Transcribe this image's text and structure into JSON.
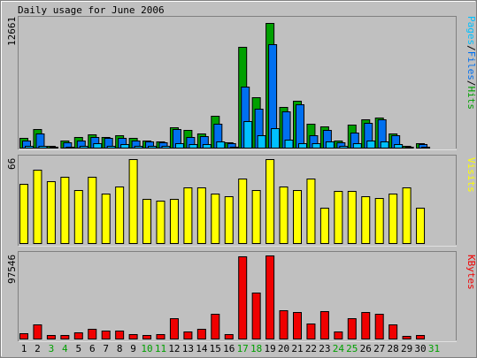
{
  "chart_data": {
    "type": "bar",
    "title": "Daily usage for June 2006",
    "categories": [
      "1",
      "2",
      "3",
      "4",
      "5",
      "6",
      "7",
      "8",
      "9",
      "10",
      "11",
      "12",
      "13",
      "14",
      "15",
      "16",
      "17",
      "18",
      "19",
      "20",
      "21",
      "22",
      "23",
      "24",
      "25",
      "26",
      "27",
      "28",
      "29",
      "30",
      "31"
    ],
    "weekend_days": [
      "3",
      "4",
      "10",
      "11",
      "17",
      "18",
      "24",
      "25",
      "31"
    ],
    "colors": {
      "hits": "#00a000",
      "files": "#0070f0",
      "pages": "#00c0ff",
      "visits": "#ffff00",
      "kbytes": "#f00000",
      "weekday_label": "#000000",
      "weekend_label": "#00a000",
      "background": "#c0c0c0"
    },
    "panels": {
      "hits_files_pages": {
        "ymax_label": "12661",
        "ylim": [
          0,
          12661
        ],
        "legend": [
          {
            "text": "Pages",
            "color": "#00c0ff"
          },
          {
            "text": "/",
            "color": "#000000"
          },
          {
            "text": "Files",
            "color": "#0070f0"
          },
          {
            "text": "/",
            "color": "#000000"
          },
          {
            "text": "Hits",
            "color": "#00a000"
          }
        ],
        "series": [
          {
            "name": "Hits",
            "values": [
              1000,
              1900,
              300,
              800,
              1100,
              1400,
              1100,
              1300,
              1000,
              800,
              700,
              2100,
              1800,
              1500,
              3200,
              600,
              10000,
              5000,
              12300,
              4100,
              4700,
              2400,
              2200,
              800,
              2300,
              2900,
              3000,
              1500,
              300,
              500,
              0
            ]
          },
          {
            "name": "Files",
            "values": [
              800,
              1500,
              200,
              600,
              800,
              1100,
              1000,
              1000,
              800,
              700,
              600,
              1900,
              1100,
              1200,
              2400,
              500,
              6100,
              3900,
              10200,
              3600,
              4300,
              1300,
              1800,
              600,
              1600,
              2500,
              2900,
              1300,
              200,
              400,
              0
            ]
          },
          {
            "name": "Pages",
            "values": [
              300,
              300,
              100,
              200,
              300,
              500,
              300,
              400,
              300,
              300,
              300,
              500,
              400,
              400,
              700,
              200,
              2700,
              1300,
              2000,
              900,
              500,
              500,
              700,
              300,
              500,
              800,
              700,
              400,
              100,
              200,
              0
            ]
          }
        ]
      },
      "visits": {
        "ymax_label": "66",
        "ylim": [
          0,
          66
        ],
        "legend": [
          {
            "text": "Visits",
            "color": "#ffff00"
          }
        ],
        "series": [
          {
            "name": "Visits",
            "values": [
              47,
              58,
              49,
              52,
              42,
              52,
              39,
              45,
              66,
              35,
              34,
              35,
              44,
              44,
              39,
              37,
              51,
              42,
              66,
              45,
              42,
              51,
              28,
              41,
              41,
              37,
              36,
              39,
              44,
              28,
              0
            ]
          }
        ]
      },
      "kbytes": {
        "ymax_label": "97546",
        "ylim": [
          0,
          97546
        ],
        "legend": [
          {
            "text": "KBytes",
            "color": "#f00000"
          }
        ],
        "series": [
          {
            "name": "KBytes",
            "values": [
              7000,
              17000,
              5000,
              5000,
              8000,
              12000,
              10000,
              10000,
              6000,
              5000,
              6000,
              24000,
              9000,
              12000,
              29000,
              6000,
              96000,
              54000,
              97000,
              34000,
              32000,
              18000,
              33000,
              9000,
              24000,
              31000,
              29000,
              17000,
              4000,
              5000,
              0
            ]
          }
        ]
      }
    }
  }
}
